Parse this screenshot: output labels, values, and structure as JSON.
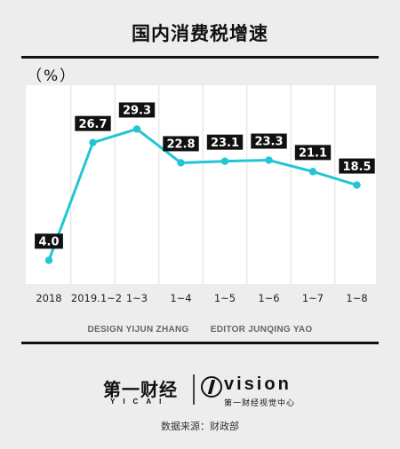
{
  "chart_data": {
    "type": "line",
    "title": "国内消费税增速",
    "unit": "（%）",
    "categories": [
      "2018",
      "2019.1~2",
      "1~3",
      "1~4",
      "1~5",
      "1~6",
      "1~7",
      "1~8"
    ],
    "values": [
      4.0,
      26.7,
      29.3,
      22.8,
      23.1,
      23.3,
      21.1,
      18.5
    ],
    "data_labels": [
      "4.0",
      "26.7",
      "29.3",
      "22.8",
      "23.1",
      "23.3",
      "21.1",
      "18.5"
    ],
    "ylim": [
      2,
      34
    ],
    "grid": "vertical",
    "line_color": "#22c5d5",
    "label_bg_color": "#111111",
    "label_text_color": "#ffffff"
  },
  "credits": {
    "design_label": "DESIGN",
    "design_name": "YIJUN ZHANG",
    "editor_label": "EDITOR",
    "editor_name": "JUNQING YAO"
  },
  "branding": {
    "brand_cn": "第一财经",
    "brand_en": "YICAI",
    "vision_en": "vision",
    "vision_cn": "第一财经视觉中心"
  },
  "source": "数据来源：财政部"
}
